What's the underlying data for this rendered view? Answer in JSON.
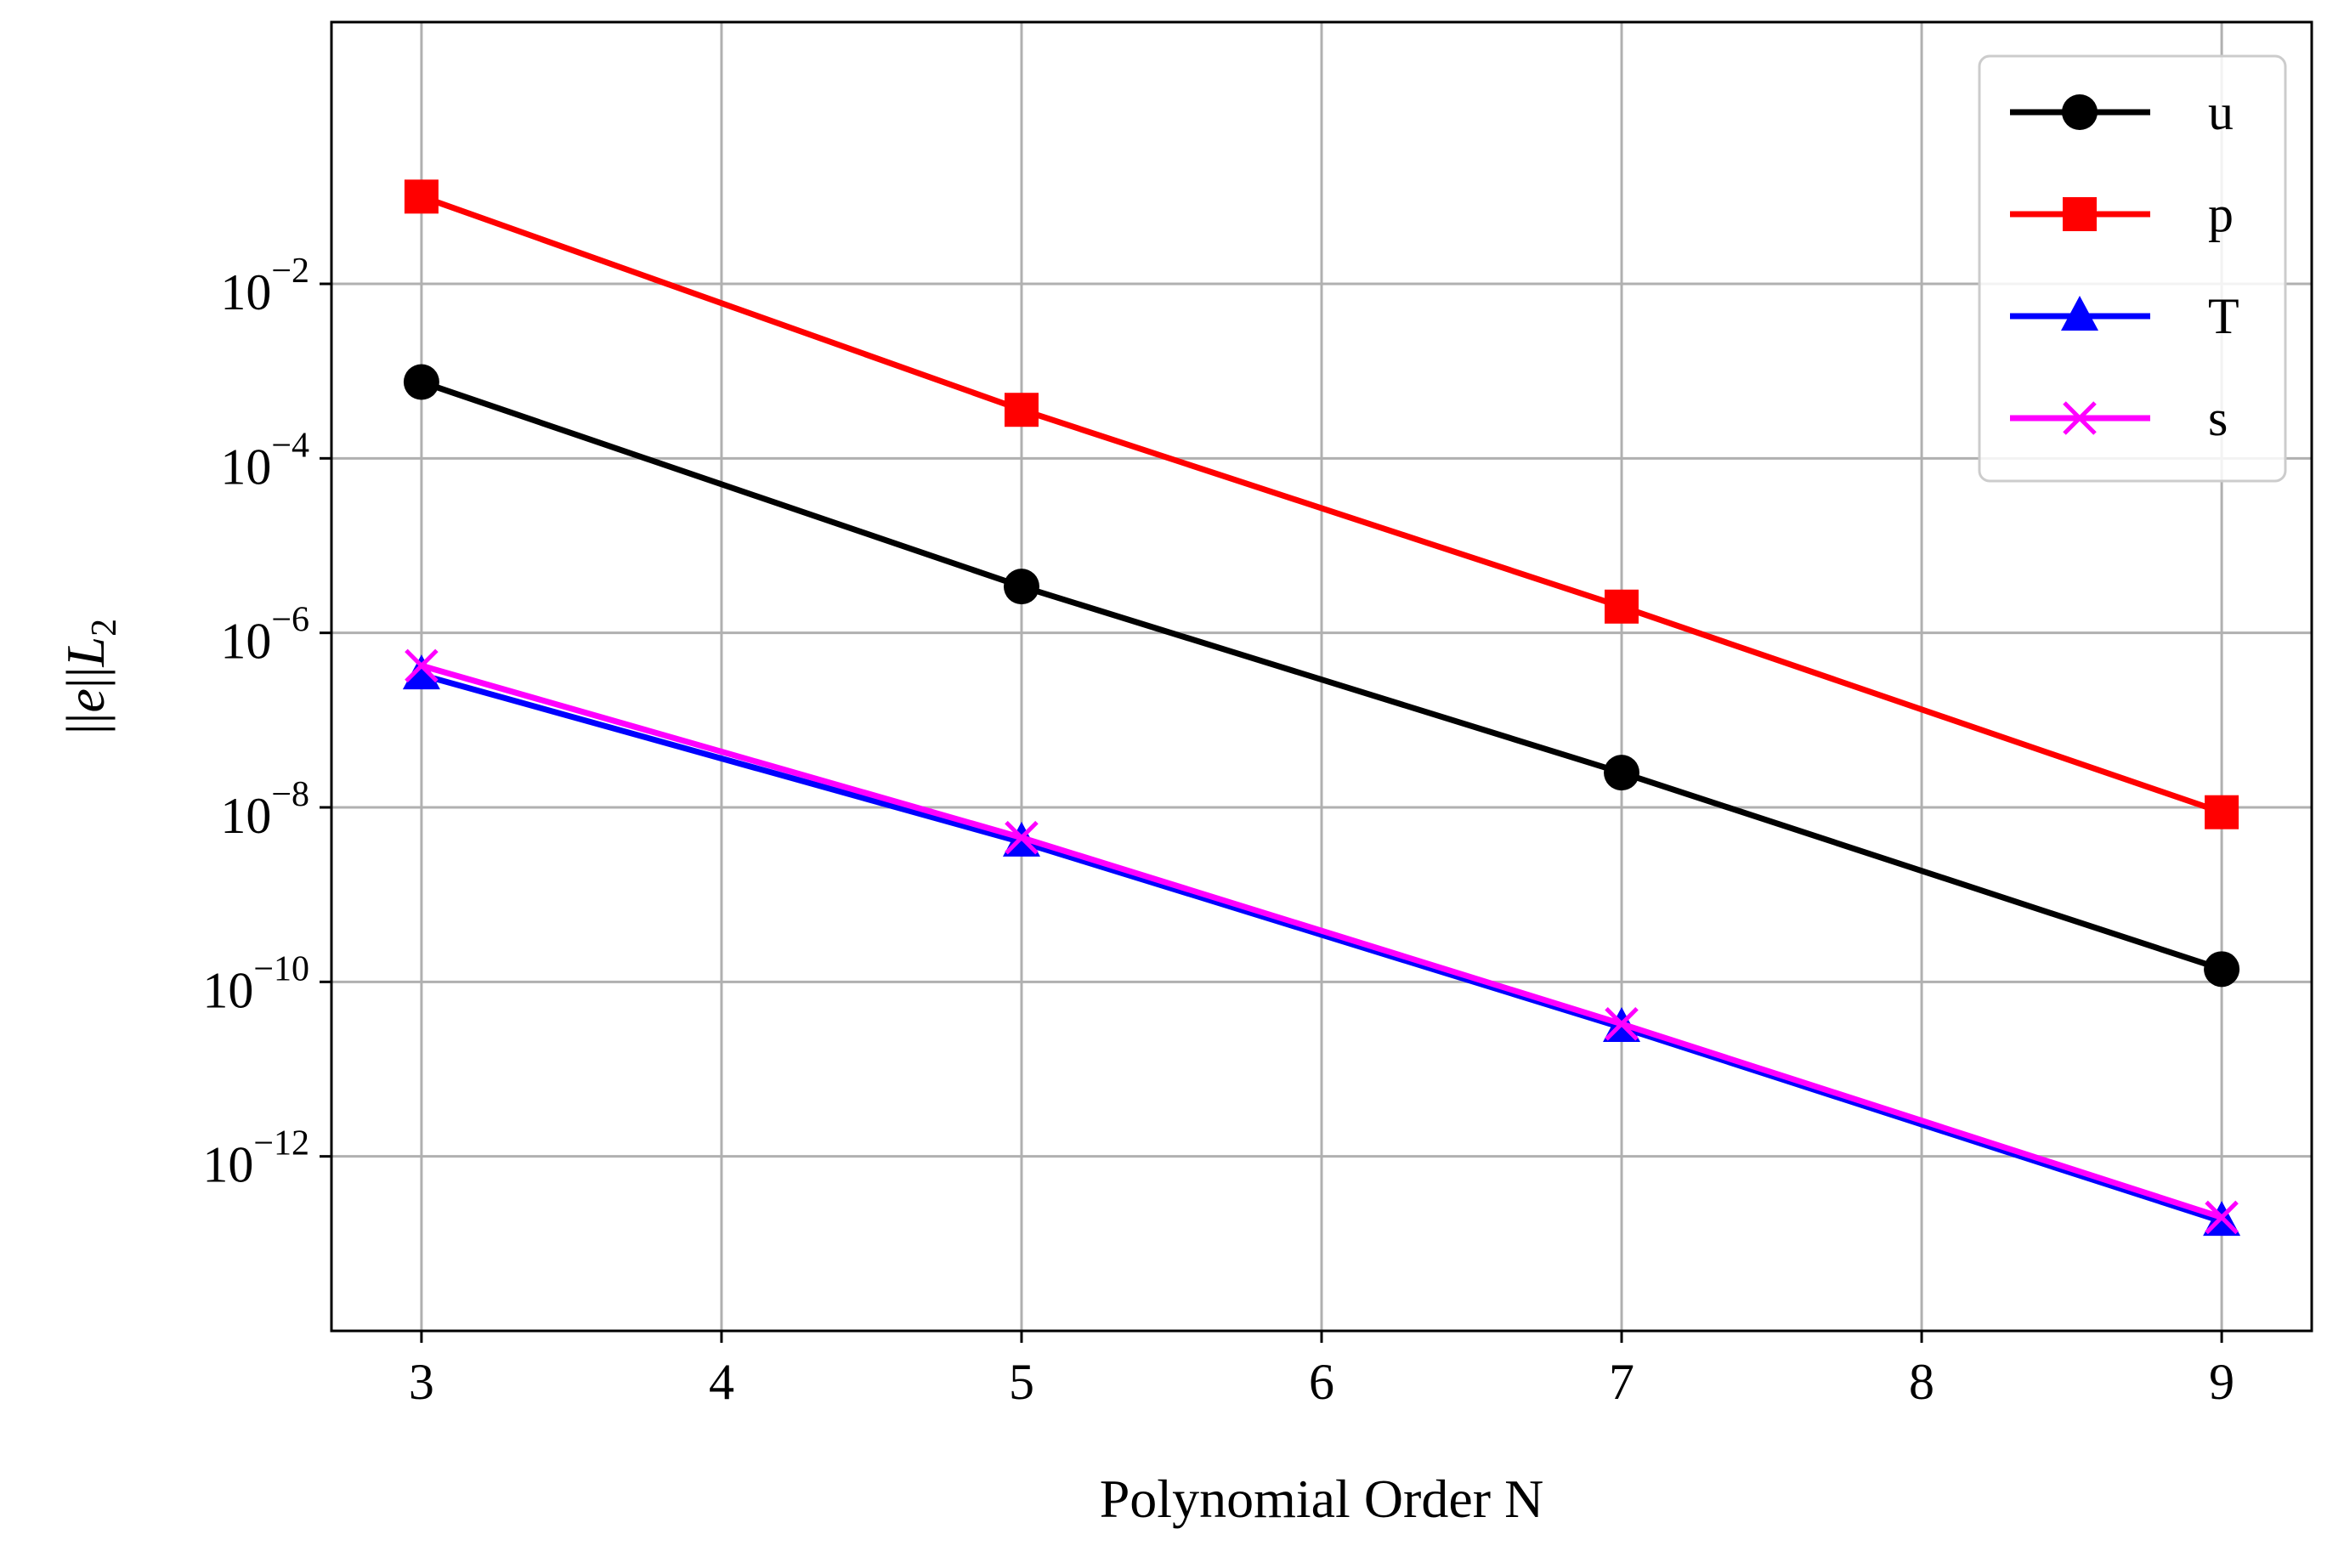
{
  "chart_data": {
    "type": "line",
    "xlabel": "Polynomial Order N",
    "ylabel_parts": [
      "||",
      "e",
      "||",
      "L",
      "2"
    ],
    "x_ticks": [
      3,
      4,
      5,
      6,
      7,
      8,
      9
    ],
    "xlim": [
      2.7,
      9.3
    ],
    "y_scale": "log",
    "ylim": [
      1e-14,
      10.0
    ],
    "y_ticks": [
      {
        "value": 0.01,
        "base": "10",
        "exp": "−2"
      },
      {
        "value": 0.0001,
        "base": "10",
        "exp": "−4"
      },
      {
        "value": 1e-06,
        "base": "10",
        "exp": "−6"
      },
      {
        "value": 1e-08,
        "base": "10",
        "exp": "−8"
      },
      {
        "value": 1e-10,
        "base": "10",
        "exp": "−10"
      },
      {
        "value": 1e-12,
        "base": "10",
        "exp": "−12"
      }
    ],
    "grid": true,
    "legend_position": "top-right",
    "x": [
      3,
      5,
      7,
      9
    ],
    "series": [
      {
        "name": "u",
        "color": "#000000",
        "marker": "circle",
        "values": [
          0.00075,
          3.4e-06,
          2.5e-08,
          1.4e-10
        ]
      },
      {
        "name": "p",
        "color": "#ff0000",
        "marker": "square",
        "values": [
          0.1,
          0.00036,
          2e-06,
          8.8e-09
        ]
      },
      {
        "name": "T",
        "color": "#0000ff",
        "marker": "triangle",
        "values": [
          3.3e-07,
          4e-09,
          3e-11,
          1.8e-13
        ]
      },
      {
        "name": "s",
        "color": "#ff00ff",
        "marker": "x",
        "values": [
          4.2e-07,
          4.5e-09,
          3.3e-11,
          2e-13
        ]
      }
    ]
  }
}
